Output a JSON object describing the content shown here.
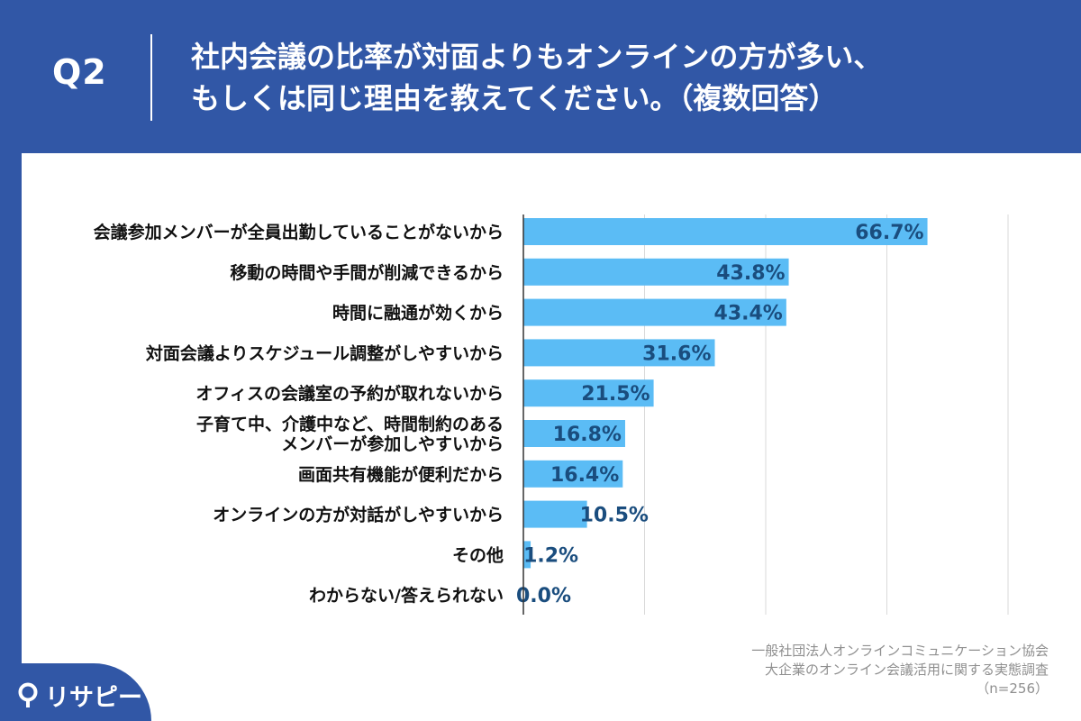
{
  "header": {
    "q_label": "Q2",
    "question": "社内会議の比率が対面よりもオンラインの方が多い、\nもしくは同じ理由を教えてください。（複数回答）"
  },
  "chart_data": {
    "type": "bar",
    "orientation": "horizontal",
    "title": "社内会議の比率が対面よりもオンラインの方が多い、もしくは同じ理由を教えてください。（複数回答）",
    "categories": [
      "会議参加メンバーが全員出勤していることがないから",
      "移動の時間や手間が削減できるから",
      "時間に融通が効くから",
      "対面会議よりスケジュール調整がしやすいから",
      "オフィスの会議室の予約が取れないから",
      "子育て中、介護中など、時間制約のある\nメンバーが参加しやすいから",
      "画面共有機能が便利だから",
      "オンラインの方が対話がしやすいから",
      "その他",
      "わからない/答えられない"
    ],
    "values": [
      66.7,
      43.8,
      43.4,
      31.6,
      21.5,
      16.8,
      16.4,
      10.5,
      1.2,
      0.0
    ],
    "labels": [
      "66.7%",
      "43.8%",
      "43.4%",
      "31.6%",
      "21.5%",
      "16.8%",
      "16.4%",
      "10.5%",
      "1.2%",
      "0.0%"
    ],
    "xlim": [
      0,
      80
    ],
    "grid": true,
    "bar_color": "#5bbcf5",
    "label_color": "#1a4d7e"
  },
  "source": {
    "line1": "一般社団法人オンラインコミュニケーション協会",
    "line2": "大企業のオンライン会議活用に関する実態調査",
    "line3": "（n=256）"
  },
  "brand": {
    "name": "リサピー",
    "icon": "location-pin-icon"
  },
  "colors": {
    "background": "#3157a6",
    "panel": "#ffffff"
  }
}
